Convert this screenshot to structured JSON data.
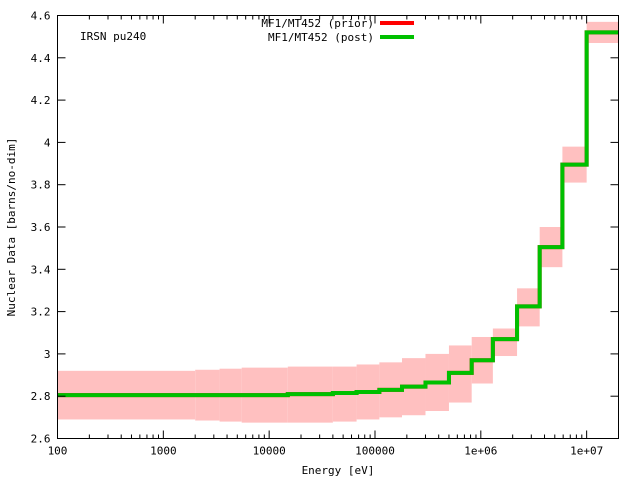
{
  "chart_data": {
    "type": "line",
    "title": "",
    "annotation": "IRSN pu240",
    "xlabel": "Energy [eV]",
    "ylabel": "Nuclear Data [barns/no-dim]",
    "xscale": "log",
    "xlim": [
      100,
      20000000
    ],
    "ylim": [
      2.6,
      4.6
    ],
    "grid": false,
    "legend_placement": "top-center",
    "x_ticks": [
      {
        "value": 100,
        "label": "100"
      },
      {
        "value": 1000,
        "label": "1000"
      },
      {
        "value": 10000,
        "label": "10000"
      },
      {
        "value": 100000,
        "label": "100000"
      },
      {
        "value": 1000000,
        "label": "1e+06"
      },
      {
        "value": 10000000,
        "label": "1e+07"
      }
    ],
    "y_ticks": [
      {
        "value": 2.6,
        "label": "2.6"
      },
      {
        "value": 2.8,
        "label": "2.8"
      },
      {
        "value": 3.0,
        "label": "3"
      },
      {
        "value": 3.2,
        "label": "3.2"
      },
      {
        "value": 3.4,
        "label": "3.4"
      },
      {
        "value": 3.6,
        "label": "3.6"
      },
      {
        "value": 3.8,
        "label": "3.8"
      },
      {
        "value": 4.0,
        "label": "4"
      },
      {
        "value": 4.2,
        "label": "4.2"
      },
      {
        "value": 4.4,
        "label": "4.4"
      },
      {
        "value": 4.6,
        "label": "4.6"
      }
    ],
    "bin_edges": [
      100,
      2000,
      3400,
      5500,
      15000,
      40000,
      67000,
      110000,
      180000,
      300000,
      500000,
      820000,
      1300000,
      2200000,
      3600000,
      5900000,
      10000000,
      20000000
    ],
    "series": [
      {
        "name": "MF1/MT452 (prior)",
        "color": "#ff0000",
        "type": "step",
        "values": [
          2.805,
          2.805,
          2.805,
          2.805,
          2.81,
          2.815,
          2.82,
          2.83,
          2.845,
          2.865,
          2.91,
          2.97,
          3.07,
          3.225,
          3.505,
          3.895,
          4.52
        ]
      },
      {
        "name": "MF1/MT452 (post)",
        "color": "#00c000",
        "type": "step",
        "values": [
          2.805,
          2.805,
          2.805,
          2.805,
          2.81,
          2.815,
          2.82,
          2.83,
          2.845,
          2.865,
          2.91,
          2.97,
          3.07,
          3.225,
          3.505,
          3.895,
          4.52
        ]
      }
    ],
    "uncertainty_band": {
      "color": "#ffc0c0",
      "lower": [
        2.69,
        2.685,
        2.68,
        2.675,
        2.675,
        2.68,
        2.69,
        2.7,
        2.71,
        2.73,
        2.77,
        2.86,
        2.99,
        3.13,
        3.41,
        3.81,
        4.47
      ],
      "upper": [
        2.92,
        2.925,
        2.93,
        2.935,
        2.94,
        2.94,
        2.95,
        2.96,
        2.98,
        3.0,
        3.04,
        3.08,
        3.12,
        3.31,
        3.6,
        3.98,
        4.57
      ]
    }
  }
}
